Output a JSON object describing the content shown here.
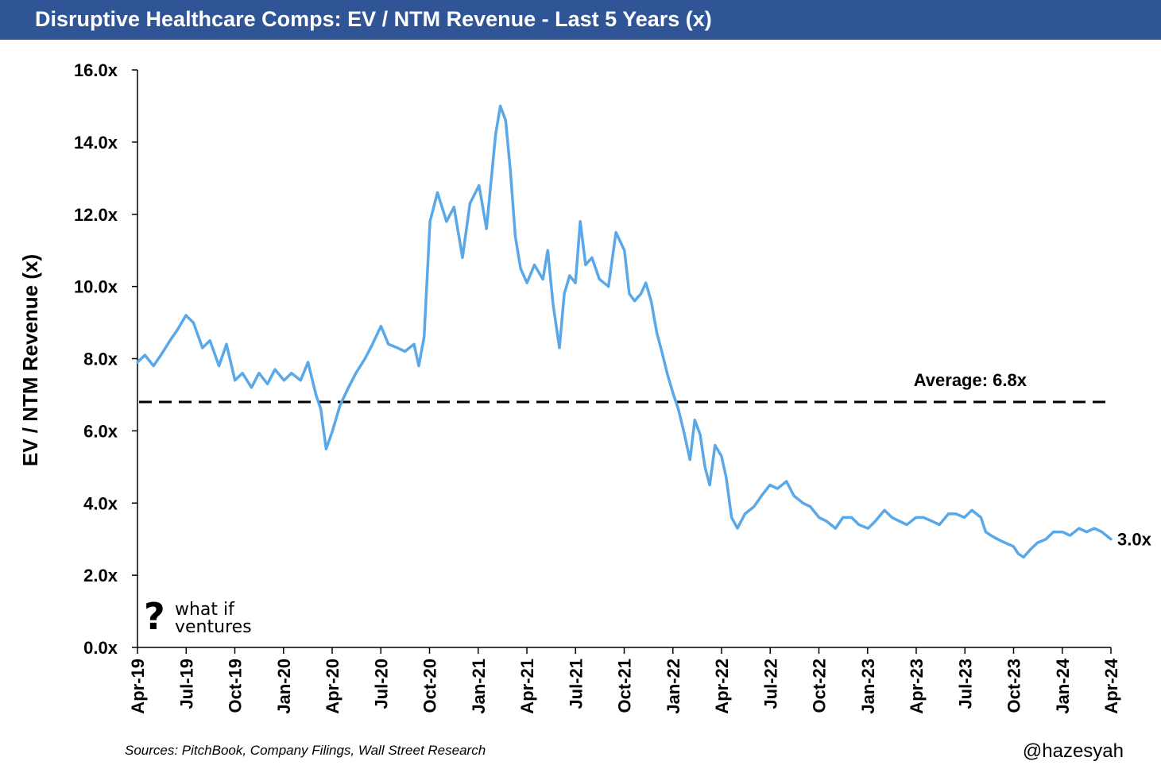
{
  "header": {
    "title": "Disruptive Healthcare Comps: EV / NTM Revenue - Last 5 Years (x)"
  },
  "footer": {
    "source": "Sources: PitchBook, Company Filings, Wall Street Research",
    "handle": "@hazesyah"
  },
  "logo": {
    "mark": "?",
    "line1": "what if",
    "line2": "ventures"
  },
  "colors": {
    "header_bg": "#2f5597",
    "series": "#5aa8e8",
    "average_line": "#000000"
  },
  "chart_data": {
    "type": "line",
    "title": "Disruptive Healthcare Comps: EV / NTM Revenue - Last 5 Years (x)",
    "ylabel": "EV / NTM Revenue (x)",
    "xlabel": "",
    "ylim": [
      0,
      16
    ],
    "yticks": [
      "0.0x",
      "2.0x",
      "4.0x",
      "6.0x",
      "8.0x",
      "10.0x",
      "12.0x",
      "14.0x",
      "16.0x"
    ],
    "xticks": [
      "Apr-19",
      "Jul-19",
      "Oct-19",
      "Jan-20",
      "Apr-20",
      "Jul-20",
      "Oct-20",
      "Jan-21",
      "Apr-21",
      "Jul-21",
      "Oct-21",
      "Jan-22",
      "Apr-22",
      "Jul-22",
      "Oct-22",
      "Jan-23",
      "Apr-23",
      "Jul-23",
      "Oct-23",
      "Jan-24",
      "Apr-24"
    ],
    "grid": false,
    "legend": "none",
    "average": {
      "value": 6.8,
      "label": "Average: 6.8x"
    },
    "last_label": "3.0x",
    "series": [
      {
        "values": [
          [
            "2019-04-01",
            7.9
          ],
          [
            "2019-04-15",
            8.1
          ],
          [
            "2019-05-01",
            7.8
          ],
          [
            "2019-05-15",
            8.1
          ],
          [
            "2019-06-01",
            8.5
          ],
          [
            "2019-06-15",
            8.8
          ],
          [
            "2019-07-01",
            9.2
          ],
          [
            "2019-07-15",
            9.0
          ],
          [
            "2019-08-01",
            8.3
          ],
          [
            "2019-08-15",
            8.5
          ],
          [
            "2019-09-01",
            7.8
          ],
          [
            "2019-09-15",
            8.4
          ],
          [
            "2019-10-01",
            7.4
          ],
          [
            "2019-10-15",
            7.6
          ],
          [
            "2019-11-01",
            7.2
          ],
          [
            "2019-11-15",
            7.6
          ],
          [
            "2019-12-01",
            7.3
          ],
          [
            "2019-12-15",
            7.7
          ],
          [
            "2020-01-01",
            7.4
          ],
          [
            "2020-01-15",
            7.6
          ],
          [
            "2020-02-01",
            7.4
          ],
          [
            "2020-02-15",
            7.9
          ],
          [
            "2020-03-01",
            7.0
          ],
          [
            "2020-03-10",
            6.6
          ],
          [
            "2020-03-20",
            5.5
          ],
          [
            "2020-04-01",
            6.0
          ],
          [
            "2020-04-15",
            6.7
          ],
          [
            "2020-05-01",
            7.2
          ],
          [
            "2020-05-15",
            7.6
          ],
          [
            "2020-06-01",
            8.0
          ],
          [
            "2020-06-15",
            8.4
          ],
          [
            "2020-07-01",
            8.9
          ],
          [
            "2020-07-15",
            8.4
          ],
          [
            "2020-08-01",
            8.3
          ],
          [
            "2020-08-15",
            8.2
          ],
          [
            "2020-09-01",
            8.4
          ],
          [
            "2020-09-10",
            7.8
          ],
          [
            "2020-09-20",
            8.6
          ],
          [
            "2020-10-01",
            11.8
          ],
          [
            "2020-10-15",
            12.6
          ],
          [
            "2020-11-01",
            11.8
          ],
          [
            "2020-11-15",
            12.2
          ],
          [
            "2020-12-01",
            10.8
          ],
          [
            "2020-12-15",
            12.3
          ],
          [
            "2021-01-01",
            12.8
          ],
          [
            "2021-01-15",
            11.6
          ],
          [
            "2021-02-01",
            14.2
          ],
          [
            "2021-02-10",
            15.0
          ],
          [
            "2021-02-20",
            14.6
          ],
          [
            "2021-03-01",
            13.2
          ],
          [
            "2021-03-10",
            11.4
          ],
          [
            "2021-03-20",
            10.5
          ],
          [
            "2021-04-01",
            10.1
          ],
          [
            "2021-04-15",
            10.6
          ],
          [
            "2021-05-01",
            10.2
          ],
          [
            "2021-05-10",
            11.0
          ],
          [
            "2021-05-20",
            9.5
          ],
          [
            "2021-06-01",
            8.3
          ],
          [
            "2021-06-10",
            9.8
          ],
          [
            "2021-06-20",
            10.3
          ],
          [
            "2021-07-01",
            10.1
          ],
          [
            "2021-07-10",
            11.8
          ],
          [
            "2021-07-20",
            10.6
          ],
          [
            "2021-08-01",
            10.8
          ],
          [
            "2021-08-15",
            10.2
          ],
          [
            "2021-09-01",
            10.0
          ],
          [
            "2021-09-15",
            11.5
          ],
          [
            "2021-10-01",
            11.0
          ],
          [
            "2021-10-10",
            9.8
          ],
          [
            "2021-10-20",
            9.6
          ],
          [
            "2021-11-01",
            9.8
          ],
          [
            "2021-11-10",
            10.1
          ],
          [
            "2021-11-20",
            9.6
          ],
          [
            "2021-12-01",
            8.7
          ],
          [
            "2021-12-10",
            8.2
          ],
          [
            "2021-12-20",
            7.6
          ],
          [
            "2022-01-01",
            7.0
          ],
          [
            "2022-01-10",
            6.6
          ],
          [
            "2022-01-20",
            6.0
          ],
          [
            "2022-02-01",
            5.2
          ],
          [
            "2022-02-10",
            6.3
          ],
          [
            "2022-02-20",
            5.9
          ],
          [
            "2022-03-01",
            5.0
          ],
          [
            "2022-03-10",
            4.5
          ],
          [
            "2022-03-20",
            5.6
          ],
          [
            "2022-04-01",
            5.3
          ],
          [
            "2022-04-10",
            4.7
          ],
          [
            "2022-04-20",
            3.6
          ],
          [
            "2022-05-01",
            3.3
          ],
          [
            "2022-05-15",
            3.7
          ],
          [
            "2022-06-01",
            3.9
          ],
          [
            "2022-06-15",
            4.2
          ],
          [
            "2022-07-01",
            4.5
          ],
          [
            "2022-07-15",
            4.4
          ],
          [
            "2022-08-01",
            4.6
          ],
          [
            "2022-08-15",
            4.2
          ],
          [
            "2022-09-01",
            4.0
          ],
          [
            "2022-09-15",
            3.9
          ],
          [
            "2022-10-01",
            3.6
          ],
          [
            "2022-10-15",
            3.5
          ],
          [
            "2022-11-01",
            3.3
          ],
          [
            "2022-11-15",
            3.6
          ],
          [
            "2022-12-01",
            3.6
          ],
          [
            "2022-12-15",
            3.4
          ],
          [
            "2023-01-01",
            3.3
          ],
          [
            "2023-01-15",
            3.5
          ],
          [
            "2023-02-01",
            3.8
          ],
          [
            "2023-02-15",
            3.6
          ],
          [
            "2023-03-01",
            3.5
          ],
          [
            "2023-03-15",
            3.4
          ],
          [
            "2023-04-01",
            3.6
          ],
          [
            "2023-04-15",
            3.6
          ],
          [
            "2023-05-01",
            3.5
          ],
          [
            "2023-05-15",
            3.4
          ],
          [
            "2023-06-01",
            3.7
          ],
          [
            "2023-06-15",
            3.7
          ],
          [
            "2023-07-01",
            3.6
          ],
          [
            "2023-07-15",
            3.8
          ],
          [
            "2023-08-01",
            3.6
          ],
          [
            "2023-08-10",
            3.2
          ],
          [
            "2023-08-20",
            3.1
          ],
          [
            "2023-09-01",
            3.0
          ],
          [
            "2023-09-15",
            2.9
          ],
          [
            "2023-10-01",
            2.8
          ],
          [
            "2023-10-10",
            2.6
          ],
          [
            "2023-10-20",
            2.5
          ],
          [
            "2023-11-01",
            2.7
          ],
          [
            "2023-11-15",
            2.9
          ],
          [
            "2023-12-01",
            3.0
          ],
          [
            "2023-12-15",
            3.2
          ],
          [
            "2024-01-01",
            3.2
          ],
          [
            "2024-01-15",
            3.1
          ],
          [
            "2024-02-01",
            3.3
          ],
          [
            "2024-02-15",
            3.2
          ],
          [
            "2024-03-01",
            3.3
          ],
          [
            "2024-03-15",
            3.2
          ],
          [
            "2024-04-01",
            3.0
          ]
        ]
      }
    ]
  }
}
